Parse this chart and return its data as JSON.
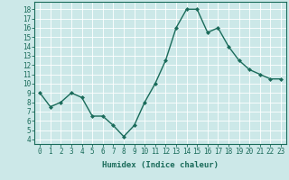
{
  "x": [
    0,
    1,
    2,
    3,
    4,
    5,
    6,
    7,
    8,
    9,
    10,
    11,
    12,
    13,
    14,
    15,
    16,
    17,
    18,
    19,
    20,
    21,
    22,
    23
  ],
  "y": [
    9.0,
    7.5,
    8.0,
    9.0,
    8.5,
    6.5,
    6.5,
    5.5,
    4.3,
    5.5,
    8.0,
    10.0,
    12.5,
    16.0,
    18.0,
    18.0,
    15.5,
    16.0,
    14.0,
    12.5,
    11.5,
    11.0,
    10.5,
    10.5
  ],
  "xlabel": "Humidex (Indice chaleur)",
  "line_color": "#1a6b5a",
  "marker": "D",
  "marker_size": 2.0,
  "bg_color": "#cce8e8",
  "grid_color": "#ffffff",
  "xlim": [
    -0.5,
    23.5
  ],
  "ylim": [
    3.5,
    18.8
  ],
  "yticks": [
    4,
    5,
    6,
    7,
    8,
    9,
    10,
    11,
    12,
    13,
    14,
    15,
    16,
    17,
    18
  ],
  "xticks": [
    0,
    1,
    2,
    3,
    4,
    5,
    6,
    7,
    8,
    9,
    10,
    11,
    12,
    13,
    14,
    15,
    16,
    17,
    18,
    19,
    20,
    21,
    22,
    23
  ],
  "tick_fontsize": 5.5,
  "xlabel_fontsize": 6.5,
  "linewidth": 1.0
}
